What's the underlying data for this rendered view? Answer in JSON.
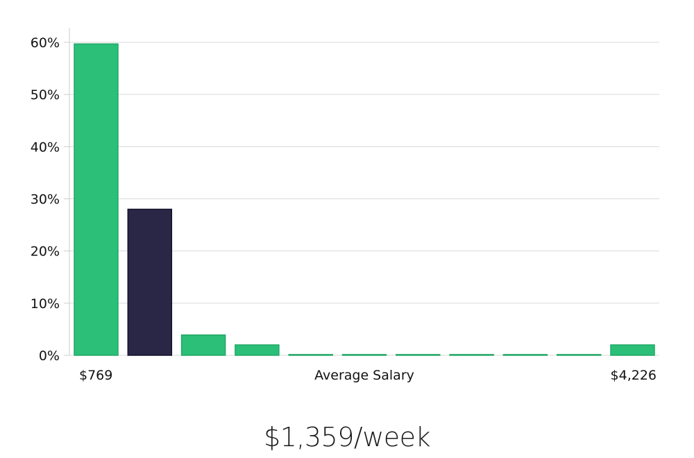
{
  "chart_data": {
    "type": "bar",
    "ylabel": "",
    "ylim": [
      0,
      60
    ],
    "yticks": [
      0,
      10,
      20,
      30,
      40,
      50,
      60
    ],
    "ytick_suffix": "%",
    "grid": true,
    "xlabel": "Average Salary",
    "x_range_labels": [
      "$769",
      "$4,226"
    ],
    "values": [
      59.7,
      28.0,
      3.9,
      2.0,
      0.15,
      0.15,
      0.15,
      0.15,
      0.15,
      0.15,
      2.0
    ],
    "highlight_index": 1,
    "colors": {
      "bar": "#2bbf78",
      "bar_stroke": "#22a866",
      "highlight": "#2a2746",
      "highlight_stroke": "#14122a",
      "grid": "#d9d9d9",
      "axis": "#cccccc"
    }
  },
  "salary": {
    "value": "$1,359/week"
  }
}
